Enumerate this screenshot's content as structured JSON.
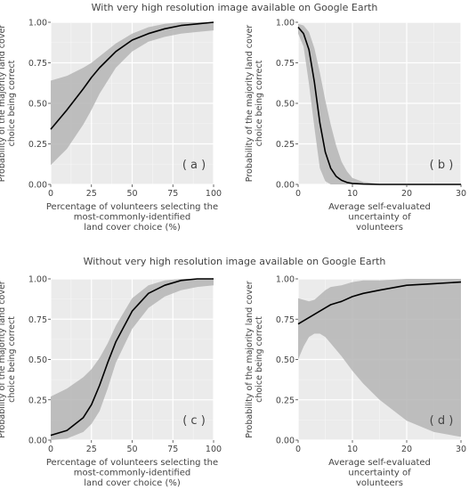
{
  "section_titles": {
    "top": "With very high resolution image available on Google Earth",
    "bottom": "Without very high resolution image available on Google Earth"
  },
  "chart_data": [
    {
      "type": "line",
      "panel_label": "( a )",
      "xlabel": [
        "Percentage of volunteers selecting the",
        "most-commonly-identified",
        "land cover choice (%)"
      ],
      "ylabel": [
        "Probability of the majority land cover",
        "choice being correct"
      ],
      "xlim": [
        0,
        100
      ],
      "ylim": [
        0,
        1
      ],
      "x_ticks": [
        "0",
        "25",
        "50",
        "75",
        "100"
      ],
      "y_ticks": [
        "0.00",
        "0.25",
        "0.50",
        "0.75",
        "1.00"
      ],
      "grid": true,
      "x": [
        0,
        10,
        20,
        25,
        30,
        40,
        50,
        60,
        70,
        80,
        90,
        100
      ],
      "y": [
        0.34,
        0.46,
        0.59,
        0.66,
        0.72,
        0.82,
        0.89,
        0.93,
        0.96,
        0.98,
        0.99,
        1.0
      ],
      "lower": [
        0.12,
        0.22,
        0.37,
        0.46,
        0.56,
        0.72,
        0.82,
        0.88,
        0.91,
        0.93,
        0.94,
        0.95
      ],
      "upper": [
        0.64,
        0.67,
        0.72,
        0.75,
        0.79,
        0.87,
        0.93,
        0.97,
        0.99,
        1.0,
        1.0,
        1.0
      ]
    },
    {
      "type": "line",
      "panel_label": "( b )",
      "xlabel": [
        "Average self-evaluated",
        "uncertainty of",
        "volunteers"
      ],
      "ylabel": [
        "Probability of the majority land cover",
        "choice being correct"
      ],
      "xlim": [
        0,
        30
      ],
      "ylim": [
        0,
        1
      ],
      "x_ticks": [
        "0",
        "10",
        "20",
        "30"
      ],
      "y_ticks": [
        "0.00",
        "0.25",
        "0.50",
        "0.75",
        "1.00"
      ],
      "grid": true,
      "x": [
        0,
        1,
        2,
        3,
        4,
        5,
        6,
        7,
        8,
        9,
        10,
        12,
        15,
        20,
        25,
        30
      ],
      "y": [
        0.97,
        0.93,
        0.83,
        0.63,
        0.38,
        0.2,
        0.1,
        0.05,
        0.025,
        0.012,
        0.006,
        0.002,
        0.0,
        0.0,
        0.0,
        0.0
      ],
      "lower": [
        0.93,
        0.85,
        0.62,
        0.35,
        0.1,
        0.02,
        0.0,
        0.0,
        0.0,
        0.0,
        0.0,
        0.0,
        0.0,
        0.0,
        0.0,
        0.0
      ],
      "upper": [
        0.99,
        0.98,
        0.94,
        0.84,
        0.69,
        0.52,
        0.37,
        0.24,
        0.14,
        0.08,
        0.04,
        0.015,
        0.003,
        0.0,
        0.0,
        0.0
      ]
    },
    {
      "type": "line",
      "panel_label": "( c )",
      "xlabel": [
        "Percentage of volunteers selecting the",
        "most-commonly-identified",
        "land cover choice (%)"
      ],
      "ylabel": [
        "Probability of the majority land cover",
        "choice being correct"
      ],
      "xlim": [
        0,
        100
      ],
      "ylim": [
        0,
        1
      ],
      "x_ticks": [
        "0",
        "25",
        "50",
        "75",
        "100"
      ],
      "y_ticks": [
        "0.00",
        "0.25",
        "0.50",
        "0.75",
        "1.00"
      ],
      "grid": true,
      "x": [
        0,
        10,
        20,
        25,
        30,
        35,
        40,
        50,
        60,
        70,
        80,
        90,
        100
      ],
      "y": [
        0.03,
        0.06,
        0.14,
        0.22,
        0.34,
        0.48,
        0.61,
        0.8,
        0.91,
        0.96,
        0.99,
        1.0,
        1.0
      ],
      "lower": [
        0.0,
        0.01,
        0.05,
        0.1,
        0.18,
        0.32,
        0.48,
        0.69,
        0.82,
        0.89,
        0.93,
        0.95,
        0.96
      ],
      "upper": [
        0.27,
        0.32,
        0.39,
        0.44,
        0.51,
        0.6,
        0.71,
        0.88,
        0.96,
        0.99,
        1.0,
        1.0,
        1.0
      ]
    },
    {
      "type": "line",
      "panel_label": "( d )",
      "xlabel": [
        "Average self-evaluated",
        "uncertainty of",
        "volunteers"
      ],
      "ylabel": [
        "Probability of the majority land cover",
        "choice being correct"
      ],
      "xlim": [
        0,
        30
      ],
      "ylim": [
        0,
        1
      ],
      "x_ticks": [
        "0",
        "10",
        "20",
        "30"
      ],
      "y_ticks": [
        "0.00",
        "0.25",
        "0.50",
        "0.75",
        "1.00"
      ],
      "grid": true,
      "x": [
        0,
        1,
        2,
        3,
        4,
        5,
        6,
        8,
        10,
        12,
        15,
        20,
        25,
        30
      ],
      "y": [
        0.72,
        0.74,
        0.76,
        0.78,
        0.8,
        0.82,
        0.84,
        0.86,
        0.89,
        0.91,
        0.93,
        0.96,
        0.97,
        0.98
      ],
      "lower": [
        0.5,
        0.58,
        0.64,
        0.66,
        0.66,
        0.64,
        0.6,
        0.52,
        0.43,
        0.35,
        0.25,
        0.12,
        0.05,
        0.02
      ],
      "upper": [
        0.88,
        0.87,
        0.86,
        0.87,
        0.9,
        0.93,
        0.95,
        0.96,
        0.98,
        0.99,
        0.99,
        1.0,
        1.0,
        1.0
      ]
    }
  ]
}
